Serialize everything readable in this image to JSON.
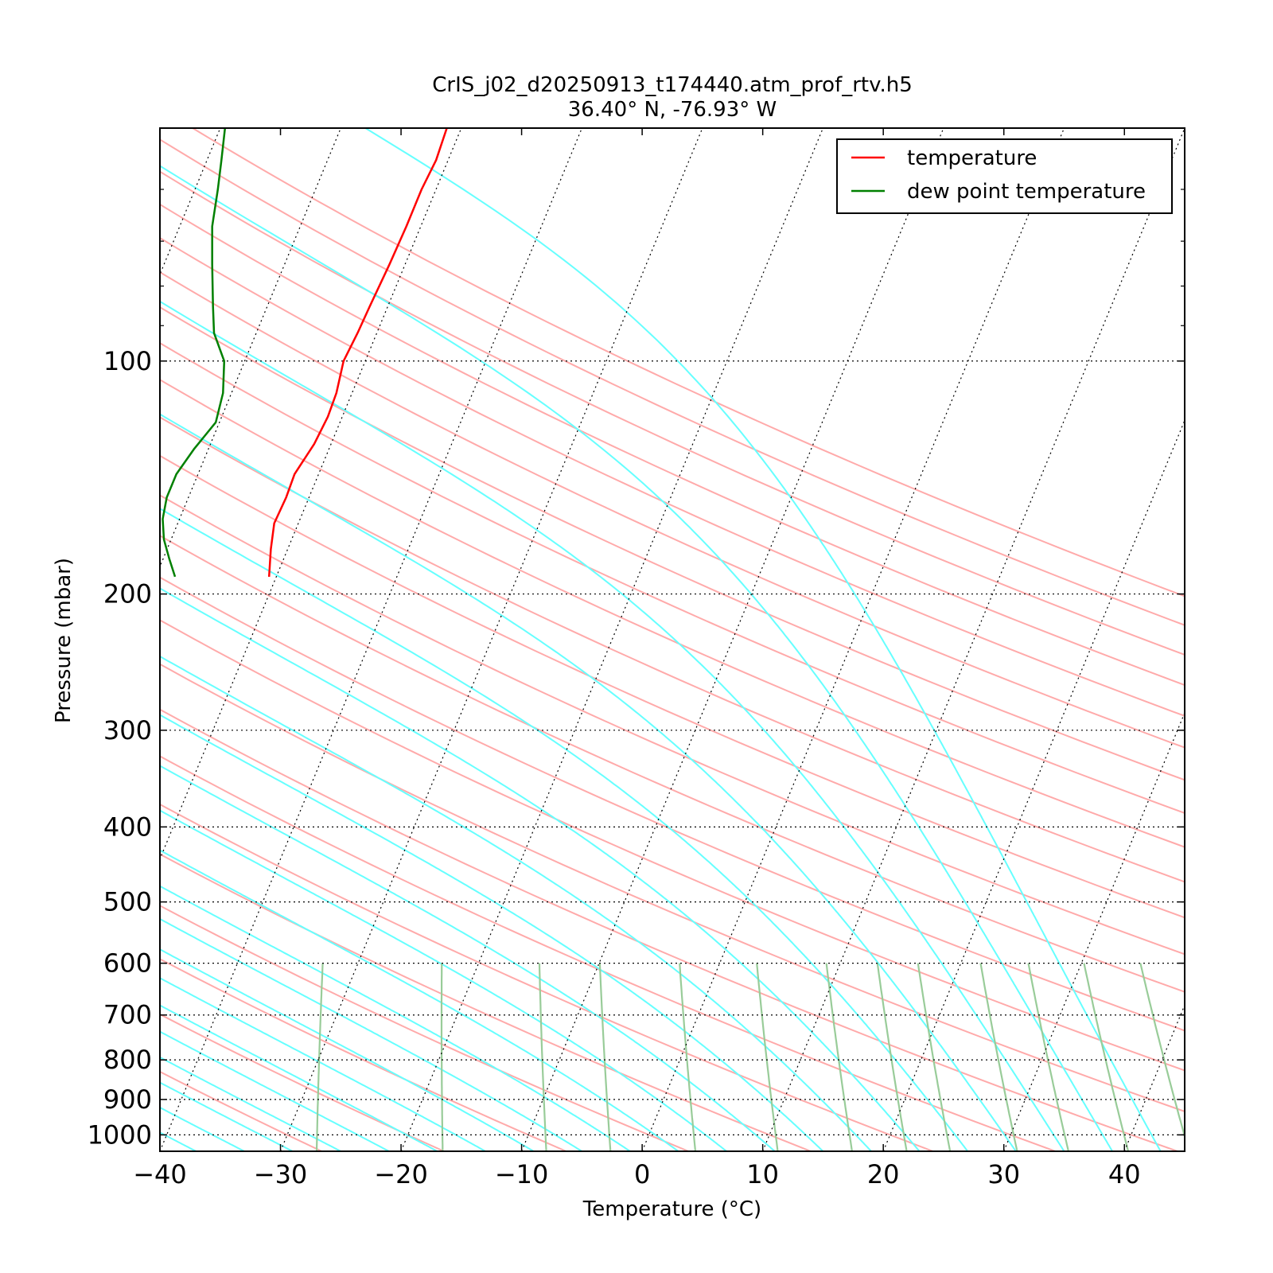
{
  "chart_data": {
    "type": "line",
    "title": "CrIS_j02_d20250913_t174440.atm_prof_rtv.h5",
    "subtitle": "36.40$^\\circ$N, -76.93$^\\circ$W",
    "subtitle_display": "36.40° N, -76.93° W",
    "xlabel": "Temperature ($^\\circ$C)",
    "xlabel_display": "Temperature (°C)",
    "ylabel": "Pressure (mbar)",
    "xlim": [
      -40,
      45
    ],
    "ylim": [
      1050,
      50
    ],
    "y_scale": "log",
    "skew": "skew-T log-P",
    "x_ticks": [
      -40,
      -30,
      -20,
      -10,
      0,
      10,
      20,
      30,
      40
    ],
    "x_tick_labels": [
      "−40",
      "−30",
      "−20",
      "−10",
      "0",
      "10",
      "20",
      "30",
      "40"
    ],
    "y_ticks": [
      100,
      200,
      300,
      400,
      500,
      600,
      700,
      800,
      900,
      1000
    ],
    "y_tick_labels": [
      "100",
      "200",
      "300",
      "400",
      "500",
      "600",
      "700",
      "800",
      "900",
      "1000"
    ],
    "grid": "dotted at pressure ticks and skewed isotherms",
    "legend_position": "top-right",
    "series": [
      {
        "name": "temperature",
        "color": "#ff0000",
        "pressure": [
          190,
          175,
          162,
          150,
          140,
          128,
          118,
          110,
          100,
          92,
          85,
          75,
          67,
          60,
          55,
          50
        ],
        "temperature": [
          -50.6,
          -51.4,
          -52.0,
          -51.9,
          -52.0,
          -51.4,
          -51.2,
          -51.3,
          -51.8,
          -51.6,
          -51.5,
          -51.3,
          -51.2,
          -51.2,
          -51.0,
          -51.2
        ]
      },
      {
        "name": "dew point temperature",
        "color": "#008000",
        "pressure": [
          190,
          180,
          170,
          160,
          150,
          140,
          130,
          120,
          110,
          100,
          92,
          85,
          75,
          67,
          60,
          55,
          50
        ],
        "temperature": [
          -58.4,
          -59.5,
          -60.6,
          -61.4,
          -61.8,
          -61.8,
          -61.2,
          -60.3,
          -60.7,
          -61.7,
          -63.5,
          -64.5,
          -66.0,
          -67.3,
          -68.1,
          -68.8,
          -69.6
        ]
      }
    ],
    "background_lines": {
      "dry_adiabats_color": "#ffaaaa",
      "moist_adiabats_color": "#66ffff",
      "mixing_ratio_lines_color": "#99cc99",
      "isotherms_color": "#000000"
    }
  }
}
